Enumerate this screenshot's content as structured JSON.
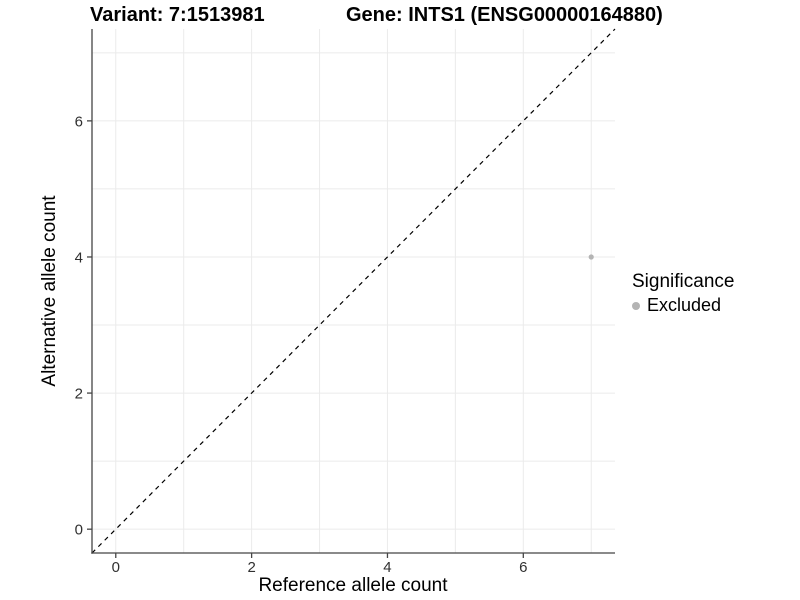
{
  "page": {
    "background": "#ffffff"
  },
  "chart_data": {
    "type": "scatter",
    "titles": {
      "left": "Variant: 7:1513981",
      "right": "Gene: INTS1 (ENSG00000164880)"
    },
    "xlabel": "Reference allele count",
    "ylabel": "Alternative allele count",
    "xlim": [
      -0.35,
      7.35
    ],
    "ylim": [
      -0.35,
      7.35
    ],
    "xticks": [
      0,
      2,
      4,
      6
    ],
    "yticks": [
      0,
      2,
      4,
      6
    ],
    "grid_positions": [
      0,
      1,
      2,
      3,
      4,
      5,
      6,
      7
    ],
    "grid": true,
    "points": [
      {
        "x": 7,
        "y": 4,
        "significance": "Excluded"
      }
    ],
    "reference_line": {
      "equation": "y = x",
      "style": "dashed",
      "color": "#000000"
    },
    "legend": {
      "title": "Significance",
      "position": "right",
      "items": [
        {
          "label": "Excluded",
          "color": "#b4b4b4"
        }
      ]
    },
    "colors": {
      "point": "#b4b4b4",
      "grid": "#ebebeb",
      "axis": "#454545",
      "tick_label": "#303030",
      "title": "#000000"
    }
  }
}
